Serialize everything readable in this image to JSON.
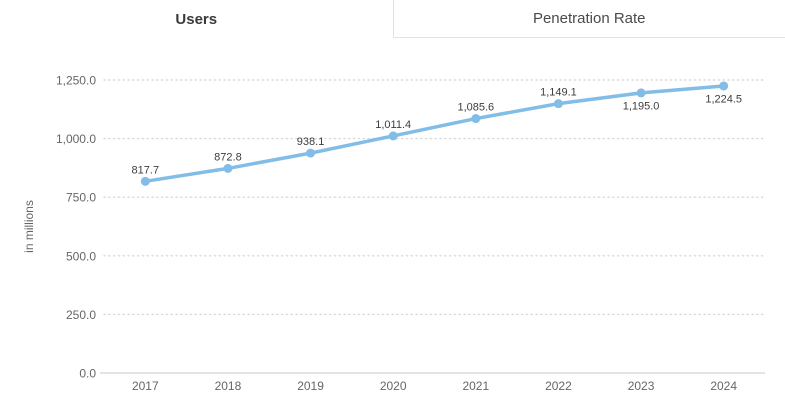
{
  "tab_bar": {
    "tabs": [
      {
        "label": "Users",
        "active": true
      },
      {
        "label": "Penetration Rate",
        "active": false
      }
    ]
  },
  "chart_data": {
    "type": "line",
    "title": "",
    "categories": [
      "2017",
      "2018",
      "2019",
      "2020",
      "2021",
      "2022",
      "2023",
      "2024"
    ],
    "series": [
      {
        "name": "Users",
        "values": [
          817.7,
          872.8,
          938.1,
          1011.4,
          1085.6,
          1149.1,
          1195.0,
          1224.5
        ],
        "point_labels": [
          "817.7",
          "872.8",
          "938.1",
          "1,011.4",
          "1,085.6",
          "1,149.1",
          "1,195.0",
          "1,224.5"
        ],
        "label_placement": [
          "above",
          "above",
          "above",
          "above",
          "above",
          "above",
          "below",
          "below"
        ]
      }
    ],
    "xlabel": "",
    "ylabel": "in millions",
    "ylim": [
      0,
      1250
    ],
    "ytick_values": [
      0,
      250,
      500,
      750,
      1000,
      1250
    ],
    "ytick_labels": [
      "0.0",
      "250.0",
      "500.0",
      "750.0",
      "1,000.0",
      "1,250.0"
    ],
    "grid": "horizontal-dotted",
    "legend": "none",
    "colors": {
      "line": "#82bde8",
      "marker": "#82bde8",
      "grid": "#d9d9d9",
      "axis": "#c9c9c9",
      "tick_text": "#666666",
      "axis_title_text": "#666666",
      "point_label_text": "#3d3d3d"
    }
  }
}
